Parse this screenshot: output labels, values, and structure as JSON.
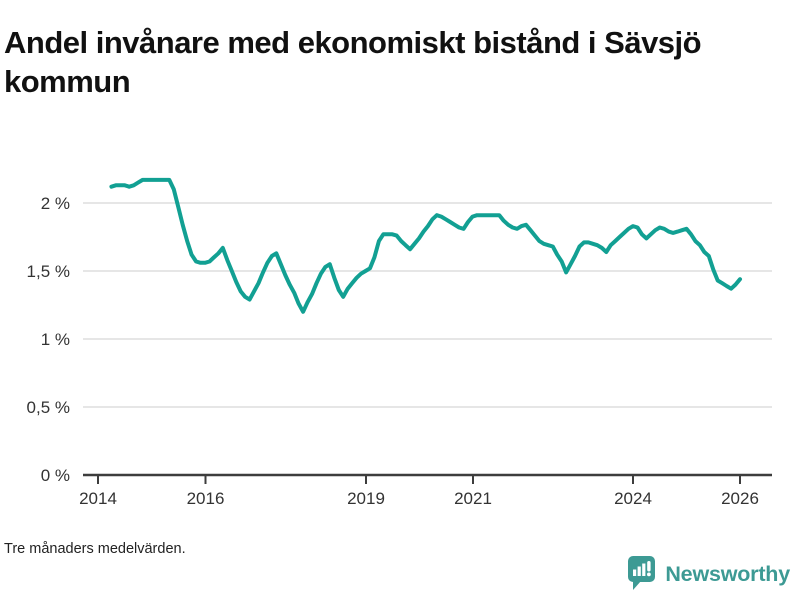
{
  "header": {
    "title": "Andel invånare med ekonomiskt bistånd i Sävsjö kommun"
  },
  "footer": {
    "note": "Tre månaders medelvärden.",
    "brand": "Newsworthy"
  },
  "colors": {
    "line": "#12A093",
    "brand_teal": "#3D9A94",
    "grid": "#e2e2e2",
    "axis": "#3d3d3d",
    "title_text": "#111111",
    "tick_text": "#333333"
  },
  "chart_data": {
    "type": "line",
    "title": "Andel invånare med ekonomiskt bistånd i Sävsjö kommun",
    "note": "Tre månaders medelvärden.",
    "unit": "%",
    "frequency": "monthly",
    "x_start": "2014-04",
    "x_end": "2026-01",
    "xlim_years": [
      2013.7,
      2026.6
    ],
    "ylim": [
      0,
      2.3
    ],
    "grid": true,
    "legend": "none",
    "x_tick_labels": [
      "2014",
      "2016",
      "2019",
      "2021",
      "2024",
      "2026"
    ],
    "x_tick_years": [
      2014,
      2016,
      2019,
      2021,
      2024,
      2026
    ],
    "y_tick_labels": [
      "2 %",
      "1,5 %",
      "1 %",
      "0,5 %",
      "0 %"
    ],
    "y_ticks": [
      2,
      1.5,
      1,
      0.5,
      0
    ],
    "series": [
      {
        "name": "Andel invånare med ekonomiskt bistånd",
        "values": [
          2.12,
          2.13,
          2.13,
          2.13,
          2.12,
          2.13,
          2.15,
          2.17,
          2.17,
          2.17,
          2.17,
          2.17,
          2.17,
          2.17,
          2.1,
          1.97,
          1.84,
          1.72,
          1.62,
          1.57,
          1.56,
          1.56,
          1.57,
          1.6,
          1.63,
          1.67,
          1.58,
          1.5,
          1.42,
          1.35,
          1.31,
          1.29,
          1.35,
          1.41,
          1.49,
          1.56,
          1.61,
          1.63,
          1.55,
          1.47,
          1.4,
          1.34,
          1.26,
          1.2,
          1.27,
          1.33,
          1.41,
          1.48,
          1.53,
          1.55,
          1.45,
          1.36,
          1.31,
          1.37,
          1.41,
          1.45,
          1.48,
          1.5,
          1.52,
          1.6,
          1.72,
          1.77,
          1.77,
          1.77,
          1.76,
          1.72,
          1.69,
          1.66,
          1.7,
          1.74,
          1.79,
          1.83,
          1.88,
          1.91,
          1.9,
          1.88,
          1.86,
          1.84,
          1.82,
          1.81,
          1.86,
          1.9,
          1.91,
          1.91,
          1.91,
          1.91,
          1.91,
          1.91,
          1.87,
          1.84,
          1.82,
          1.81,
          1.83,
          1.84,
          1.8,
          1.76,
          1.72,
          1.7,
          1.69,
          1.68,
          1.62,
          1.57,
          1.49,
          1.55,
          1.61,
          1.68,
          1.71,
          1.71,
          1.7,
          1.69,
          1.67,
          1.64,
          1.69,
          1.72,
          1.75,
          1.78,
          1.81,
          1.83,
          1.82,
          1.77,
          1.74,
          1.77,
          1.8,
          1.82,
          1.81,
          1.79,
          1.78,
          1.79,
          1.8,
          1.81,
          1.77,
          1.72,
          1.69,
          1.64,
          1.61,
          1.51,
          1.43,
          1.41,
          1.39,
          1.37,
          1.4,
          1.44
        ]
      }
    ]
  }
}
